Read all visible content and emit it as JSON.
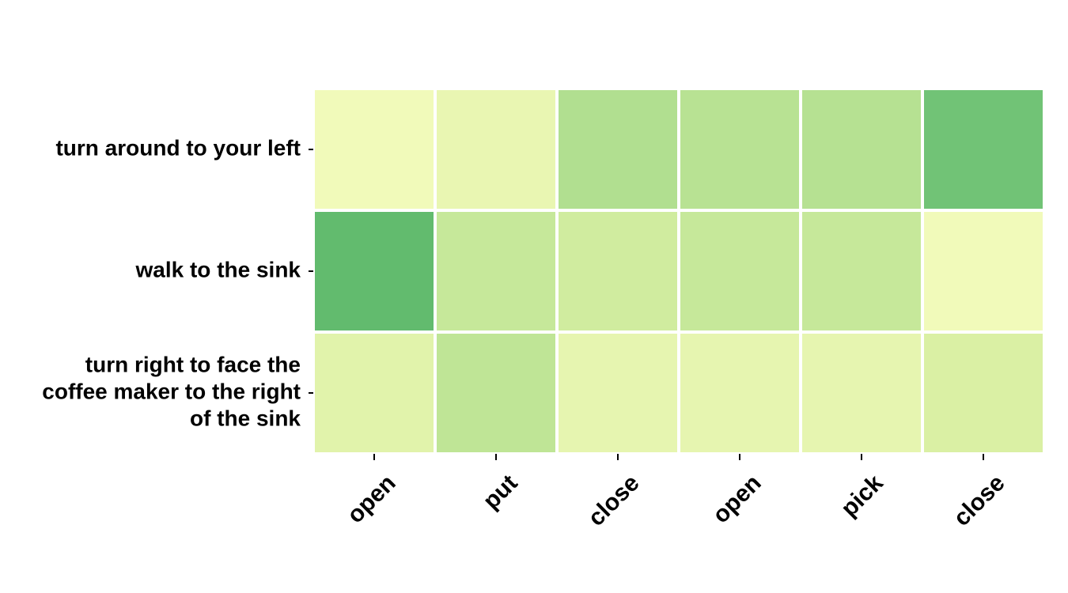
{
  "chart_data": {
    "type": "heatmap",
    "title": "",
    "xlabel": "",
    "ylabel": "",
    "columns": [
      "open",
      "put",
      "close",
      "open",
      "pick",
      "close"
    ],
    "rows": [
      [
        "turn around to your left"
      ],
      [
        "walk to the sink"
      ],
      [
        "turn right to face the",
        "coffee maker to the right",
        "of the sink"
      ]
    ],
    "values": [
      [
        0.05,
        0.12,
        0.48,
        0.44,
        0.45,
        0.78
      ],
      [
        0.85,
        0.36,
        0.3,
        0.36,
        0.36,
        0.05
      ],
      [
        0.18,
        0.4,
        0.14,
        0.14,
        0.14,
        0.24
      ]
    ],
    "value_range": [
      0,
      1
    ],
    "colormap": [
      "#f7fcc0",
      "#d9f0a3",
      "#addd8e",
      "#78c679",
      "#41ab5d"
    ],
    "grid_color": "#ffffff",
    "colorbar": false
  }
}
